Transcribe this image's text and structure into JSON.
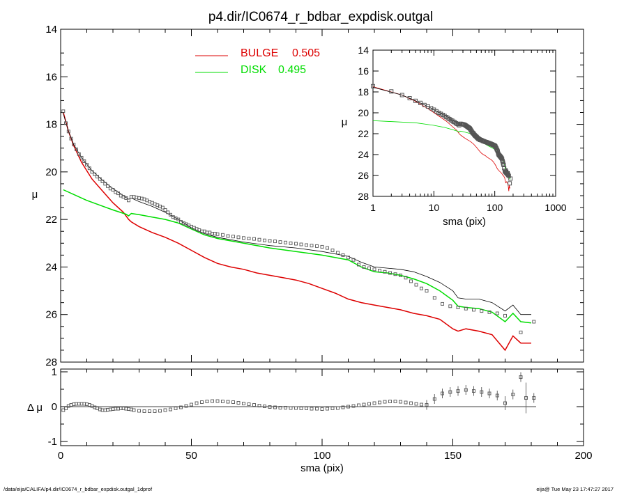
{
  "title": "p4.dir/IC0674_r_bdbar_expdisk.outgal",
  "footer": {
    "left": "/data/eija/CALIFA/p4.dir/IC0674_r_bdbar_expdisk.outgal_1dprof",
    "right": "eija@  Tue May 23 17:47:27 2017"
  },
  "colors": {
    "bulge": "#dd0000",
    "disk": "#00dd00",
    "total": "#000000",
    "data": "#555555"
  },
  "chart_data": [
    {
      "type": "line",
      "panel": "main",
      "xlabel": "sma (pix)",
      "ylabel": "μ",
      "xlim": [
        0,
        200
      ],
      "ylim": [
        28,
        14
      ],
      "xticks": [
        0,
        50,
        100,
        150,
        200
      ],
      "yticks": [
        14,
        16,
        18,
        20,
        22,
        24,
        26,
        28
      ],
      "legend": [
        {
          "name": "BULGE",
          "value": "0.505",
          "color": "#dd0000"
        },
        {
          "name": "DISK",
          "value": "0.495",
          "color": "#00dd00"
        }
      ],
      "series": [
        {
          "name": "bulge",
          "x": [
            1,
            3,
            5,
            8,
            12,
            16,
            20,
            24,
            26,
            27,
            30,
            35,
            40,
            45,
            50,
            55,
            60,
            65,
            70,
            75,
            80,
            85,
            90,
            95,
            100,
            105,
            110,
            115,
            120,
            125,
            130,
            135,
            140,
            145,
            150,
            152,
            155,
            160,
            165,
            170,
            173,
            176,
            180
          ],
          "y": [
            17.5,
            18.3,
            18.9,
            19.6,
            20.3,
            20.8,
            21.3,
            21.7,
            22.0,
            22.1,
            22.3,
            22.55,
            22.75,
            23.0,
            23.3,
            23.6,
            23.85,
            24.0,
            24.1,
            24.25,
            24.35,
            24.45,
            24.55,
            24.7,
            24.9,
            25.1,
            25.35,
            25.5,
            25.6,
            25.7,
            25.8,
            25.95,
            26.05,
            26.2,
            26.6,
            26.7,
            26.6,
            26.7,
            26.85,
            27.5,
            26.9,
            27.2,
            27.2
          ]
        },
        {
          "name": "disk",
          "x": [
            1,
            5,
            10,
            15,
            20,
            25,
            26,
            27,
            30,
            35,
            40,
            45,
            50,
            55,
            60,
            70,
            80,
            90,
            100,
            110,
            115,
            120,
            125,
            130,
            135,
            140,
            145,
            150,
            152,
            155,
            160,
            165,
            170,
            173,
            176,
            180
          ],
          "y": [
            20.75,
            20.95,
            21.2,
            21.4,
            21.6,
            21.78,
            21.85,
            21.75,
            21.8,
            21.9,
            22.0,
            22.15,
            22.4,
            22.65,
            22.8,
            23.0,
            23.2,
            23.35,
            23.5,
            23.7,
            24.0,
            24.2,
            24.25,
            24.35,
            24.5,
            24.7,
            25.0,
            25.4,
            25.65,
            25.7,
            25.75,
            25.9,
            26.3,
            25.95,
            26.3,
            26.35
          ]
        },
        {
          "name": "total",
          "x": [
            1,
            3,
            5,
            8,
            12,
            16,
            20,
            24,
            26,
            27,
            30,
            35,
            40,
            45,
            50,
            55,
            60,
            70,
            80,
            90,
            100,
            110,
            115,
            120,
            125,
            130,
            135,
            140,
            145,
            150,
            152,
            155,
            160,
            165,
            170,
            173,
            176,
            180
          ],
          "y": [
            17.55,
            18.3,
            18.85,
            19.4,
            19.95,
            20.35,
            20.7,
            21.0,
            21.15,
            21.1,
            21.25,
            21.45,
            21.7,
            22.0,
            22.35,
            22.6,
            22.75,
            22.95,
            23.1,
            23.2,
            23.35,
            23.55,
            23.8,
            24.0,
            24.05,
            24.1,
            24.2,
            24.4,
            24.65,
            25.0,
            25.3,
            25.35,
            25.35,
            25.5,
            25.85,
            25.6,
            26.0,
            26.0
          ]
        }
      ],
      "data_points": {
        "x": [
          1,
          2,
          3,
          4,
          5,
          6,
          7,
          8,
          9,
          10,
          11,
          12,
          13,
          14,
          15,
          16,
          17,
          18,
          19,
          20,
          21,
          22,
          23,
          24,
          25,
          26,
          27,
          28,
          29,
          30,
          31,
          32,
          33,
          34,
          35,
          36,
          37,
          38,
          39,
          40,
          41,
          42,
          43,
          44,
          45,
          46,
          47,
          48,
          49,
          50,
          51,
          52,
          53,
          54,
          55,
          56,
          57,
          58,
          59,
          60,
          62,
          64,
          66,
          68,
          70,
          72,
          74,
          76,
          78,
          80,
          82,
          84,
          86,
          88,
          90,
          92,
          94,
          96,
          98,
          100,
          102,
          104,
          106,
          108,
          110,
          112,
          114,
          116,
          118,
          120,
          122,
          124,
          126,
          128,
          130,
          132,
          134,
          136,
          138,
          140,
          143,
          146,
          149,
          152,
          155,
          158,
          161,
          164,
          167,
          170,
          176,
          181
        ],
        "y": [
          17.45,
          17.95,
          18.3,
          18.6,
          18.85,
          19.05,
          19.25,
          19.4,
          19.55,
          19.7,
          19.85,
          20.0,
          20.1,
          20.2,
          20.3,
          20.4,
          20.5,
          20.6,
          20.7,
          20.75,
          20.85,
          20.9,
          21.0,
          21.05,
          21.1,
          21.2,
          21.05,
          21.05,
          21.08,
          21.1,
          21.12,
          21.15,
          21.2,
          21.25,
          21.3,
          21.35,
          21.4,
          21.45,
          21.5,
          21.6,
          21.7,
          21.8,
          21.9,
          21.95,
          22.0,
          22.1,
          22.15,
          22.2,
          22.25,
          22.3,
          22.35,
          22.4,
          22.45,
          22.5,
          22.5,
          22.55,
          22.55,
          22.6,
          22.6,
          22.62,
          22.65,
          22.7,
          22.72,
          22.75,
          22.78,
          22.8,
          22.82,
          22.85,
          22.88,
          22.9,
          22.92,
          22.95,
          22.97,
          23.0,
          23.02,
          23.05,
          23.08,
          23.1,
          23.12,
          23.15,
          23.2,
          23.3,
          23.4,
          23.5,
          23.6,
          23.7,
          23.9,
          24.0,
          24.05,
          24.1,
          24.15,
          24.2,
          24.25,
          24.3,
          24.35,
          24.45,
          24.6,
          24.75,
          24.9,
          25.0,
          25.3,
          25.55,
          25.65,
          25.7,
          25.75,
          25.8,
          25.85,
          25.9,
          25.95,
          26.05,
          26.75,
          26.3
        ]
      }
    },
    {
      "type": "scatter",
      "panel": "residual",
      "ylabel": "Δ μ",
      "xlim": [
        0,
        200
      ],
      "ylim": [
        -1.1,
        1.1
      ],
      "yticks": [
        -1,
        0,
        1
      ],
      "x": [
        1,
        2,
        3,
        4,
        5,
        6,
        7,
        8,
        9,
        10,
        11,
        12,
        13,
        14,
        15,
        16,
        17,
        18,
        19,
        20,
        21,
        22,
        23,
        24,
        25,
        26,
        27,
        28,
        30,
        32,
        34,
        36,
        38,
        40,
        42,
        44,
        46,
        48,
        50,
        52,
        54,
        56,
        58,
        60,
        62,
        64,
        66,
        68,
        70,
        72,
        74,
        76,
        78,
        80,
        82,
        84,
        86,
        88,
        90,
        92,
        94,
        96,
        98,
        100,
        102,
        104,
        106,
        108,
        110,
        112,
        114,
        116,
        118,
        120,
        122,
        124,
        126,
        128,
        130,
        132,
        134,
        136,
        138,
        140,
        143,
        146,
        149,
        152,
        155,
        158,
        161,
        164,
        167,
        170,
        173,
        176,
        178,
        181
      ],
      "y": [
        -0.1,
        -0.05,
        0.02,
        0.05,
        0.07,
        0.08,
        0.08,
        0.08,
        0.08,
        0.07,
        0.05,
        0.02,
        -0.02,
        -0.05,
        -0.08,
        -0.1,
        -0.1,
        -0.09,
        -0.08,
        -0.07,
        -0.06,
        -0.06,
        -0.05,
        -0.05,
        -0.06,
        -0.07,
        -0.08,
        -0.1,
        -0.12,
        -0.13,
        -0.13,
        -0.13,
        -0.12,
        -0.1,
        -0.08,
        -0.05,
        -0.02,
        0.02,
        0.06,
        0.1,
        0.13,
        0.15,
        0.16,
        0.16,
        0.15,
        0.14,
        0.13,
        0.11,
        0.09,
        0.07,
        0.05,
        0.03,
        0.01,
        -0.01,
        -0.02,
        -0.03,
        -0.03,
        -0.04,
        -0.04,
        -0.05,
        -0.05,
        -0.06,
        -0.06,
        -0.07,
        -0.06,
        -0.05,
        -0.04,
        -0.02,
        0.0,
        0.02,
        0.04,
        0.06,
        0.08,
        0.1,
        0.12,
        0.14,
        0.15,
        0.15,
        0.14,
        0.12,
        0.1,
        0.08,
        0.06,
        0.05,
        0.22,
        0.38,
        0.42,
        0.45,
        0.48,
        0.45,
        0.42,
        0.38,
        0.32,
        0.1,
        0.35,
        0.85,
        0.25,
        0.25
      ]
    },
    {
      "type": "line",
      "panel": "inset",
      "xlabel": "sma (pix)",
      "ylabel": "μ",
      "xscale": "log",
      "xlim": [
        1,
        1000
      ],
      "ylim": [
        28,
        14
      ],
      "xtick_labels": [
        "1",
        "10",
        "100",
        "1000"
      ],
      "yticks": [
        14,
        16,
        18,
        20,
        22,
        24,
        26,
        28
      ]
    }
  ]
}
